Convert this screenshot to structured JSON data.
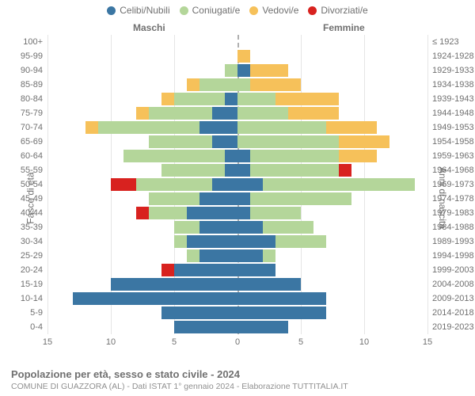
{
  "legend": [
    {
      "label": "Celibi/Nubili",
      "color": "#3b76a3"
    },
    {
      "label": "Coniugati/e",
      "color": "#b4d69a"
    },
    {
      "label": "Vedovi/e",
      "color": "#f6c15a"
    },
    {
      "label": "Divorziati/e",
      "color": "#d8221f"
    }
  ],
  "side_titles": {
    "male": "Maschi",
    "female": "Femmine"
  },
  "axis_left_title": "Fasce di età",
  "axis_right_title": "Anni di nascita",
  "xlim": 15,
  "xtick_step": 5,
  "xticks": [
    15,
    10,
    5,
    0,
    5,
    10,
    15
  ],
  "grid_color": "#e5e5e5",
  "center_line_color": "#b0b0b0",
  "background_color": "#ffffff",
  "label_fontsize": 11,
  "title_fontsize": 13,
  "footer_title": "Popolazione per età, sesso e stato civile - 2024",
  "footer_sub": "COMUNE DI GUAZZORA (AL) - Dati ISTAT 1° gennaio 2024 - Elaborazione TUTTITALIA.IT",
  "rows": [
    {
      "age": "100+",
      "birth": "≤ 1923",
      "m": {
        "c": 0,
        "co": 0,
        "v": 0,
        "d": 0
      },
      "f": {
        "c": 0,
        "co": 0,
        "v": 0,
        "d": 0
      }
    },
    {
      "age": "95-99",
      "birth": "1924-1928",
      "m": {
        "c": 0,
        "co": 0,
        "v": 0,
        "d": 0
      },
      "f": {
        "c": 0,
        "co": 0,
        "v": 1,
        "d": 0
      }
    },
    {
      "age": "90-94",
      "birth": "1929-1933",
      "m": {
        "c": 0,
        "co": 1,
        "v": 0,
        "d": 0
      },
      "f": {
        "c": 1,
        "co": 0,
        "v": 3,
        "d": 0
      }
    },
    {
      "age": "85-89",
      "birth": "1934-1938",
      "m": {
        "c": 0,
        "co": 3,
        "v": 1,
        "d": 0
      },
      "f": {
        "c": 0,
        "co": 1,
        "v": 4,
        "d": 0
      }
    },
    {
      "age": "80-84",
      "birth": "1939-1943",
      "m": {
        "c": 1,
        "co": 4,
        "v": 1,
        "d": 0
      },
      "f": {
        "c": 0,
        "co": 3,
        "v": 5,
        "d": 0
      }
    },
    {
      "age": "75-79",
      "birth": "1944-1948",
      "m": {
        "c": 2,
        "co": 5,
        "v": 1,
        "d": 0
      },
      "f": {
        "c": 0,
        "co": 4,
        "v": 4,
        "d": 0
      }
    },
    {
      "age": "70-74",
      "birth": "1949-1953",
      "m": {
        "c": 3,
        "co": 8,
        "v": 1,
        "d": 0
      },
      "f": {
        "c": 0,
        "co": 7,
        "v": 4,
        "d": 0
      }
    },
    {
      "age": "65-69",
      "birth": "1954-1958",
      "m": {
        "c": 2,
        "co": 5,
        "v": 0,
        "d": 0
      },
      "f": {
        "c": 0,
        "co": 8,
        "v": 4,
        "d": 0
      }
    },
    {
      "age": "60-64",
      "birth": "1959-1963",
      "m": {
        "c": 1,
        "co": 8,
        "v": 0,
        "d": 0
      },
      "f": {
        "c": 1,
        "co": 7,
        "v": 3,
        "d": 0
      }
    },
    {
      "age": "55-59",
      "birth": "1964-1968",
      "m": {
        "c": 1,
        "co": 5,
        "v": 0,
        "d": 0
      },
      "f": {
        "c": 1,
        "co": 7,
        "v": 0,
        "d": 1
      }
    },
    {
      "age": "50-54",
      "birth": "1969-1973",
      "m": {
        "c": 2,
        "co": 6,
        "v": 0,
        "d": 2
      },
      "f": {
        "c": 2,
        "co": 12,
        "v": 0,
        "d": 0
      }
    },
    {
      "age": "45-49",
      "birth": "1974-1978",
      "m": {
        "c": 3,
        "co": 4,
        "v": 0,
        "d": 0
      },
      "f": {
        "c": 1,
        "co": 8,
        "v": 0,
        "d": 0
      }
    },
    {
      "age": "40-44",
      "birth": "1979-1983",
      "m": {
        "c": 4,
        "co": 3,
        "v": 0,
        "d": 1
      },
      "f": {
        "c": 1,
        "co": 4,
        "v": 0,
        "d": 0
      }
    },
    {
      "age": "35-39",
      "birth": "1984-1988",
      "m": {
        "c": 3,
        "co": 2,
        "v": 0,
        "d": 0
      },
      "f": {
        "c": 2,
        "co": 4,
        "v": 0,
        "d": 0
      }
    },
    {
      "age": "30-34",
      "birth": "1989-1993",
      "m": {
        "c": 4,
        "co": 1,
        "v": 0,
        "d": 0
      },
      "f": {
        "c": 3,
        "co": 4,
        "v": 0,
        "d": 0
      }
    },
    {
      "age": "25-29",
      "birth": "1994-1998",
      "m": {
        "c": 3,
        "co": 1,
        "v": 0,
        "d": 0
      },
      "f": {
        "c": 2,
        "co": 1,
        "v": 0,
        "d": 0
      }
    },
    {
      "age": "20-24",
      "birth": "1999-2003",
      "m": {
        "c": 5,
        "co": 0,
        "v": 0,
        "d": 1
      },
      "f": {
        "c": 3,
        "co": 0,
        "v": 0,
        "d": 0
      }
    },
    {
      "age": "15-19",
      "birth": "2004-2008",
      "m": {
        "c": 10,
        "co": 0,
        "v": 0,
        "d": 0
      },
      "f": {
        "c": 5,
        "co": 0,
        "v": 0,
        "d": 0
      }
    },
    {
      "age": "10-14",
      "birth": "2009-2013",
      "m": {
        "c": 13,
        "co": 0,
        "v": 0,
        "d": 0
      },
      "f": {
        "c": 7,
        "co": 0,
        "v": 0,
        "d": 0
      }
    },
    {
      "age": "5-9",
      "birth": "2014-2018",
      "m": {
        "c": 6,
        "co": 0,
        "v": 0,
        "d": 0
      },
      "f": {
        "c": 7,
        "co": 0,
        "v": 0,
        "d": 0
      }
    },
    {
      "age": "0-4",
      "birth": "2019-2023",
      "m": {
        "c": 5,
        "co": 0,
        "v": 0,
        "d": 0
      },
      "f": {
        "c": 4,
        "co": 0,
        "v": 0,
        "d": 0
      }
    }
  ]
}
